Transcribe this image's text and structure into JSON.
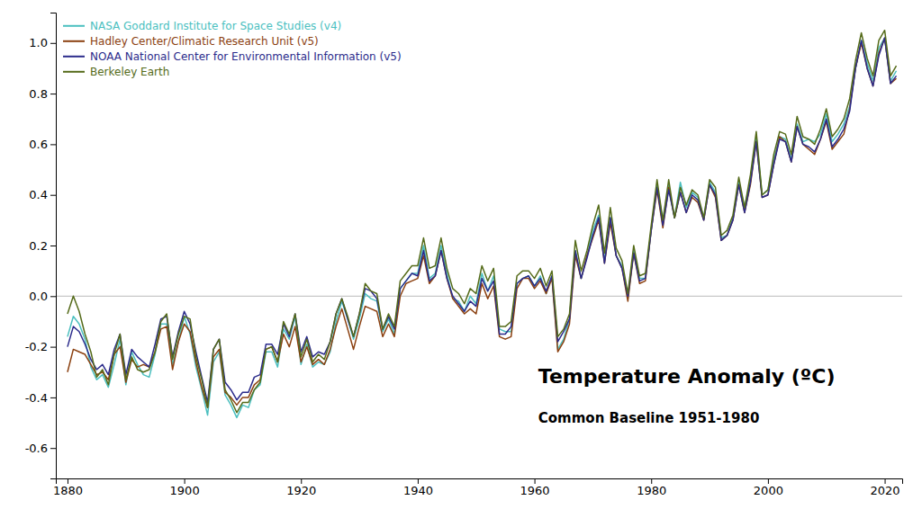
{
  "chart_data": {
    "type": "line",
    "title": "Temperature Anomaly (ºC)",
    "subtitle": "Common Baseline 1951-1980",
    "x": [
      1880,
      1881,
      1882,
      1883,
      1884,
      1885,
      1886,
      1887,
      1888,
      1889,
      1890,
      1891,
      1892,
      1893,
      1894,
      1895,
      1896,
      1897,
      1898,
      1899,
      1900,
      1901,
      1902,
      1903,
      1904,
      1905,
      1906,
      1907,
      1908,
      1909,
      1910,
      1911,
      1912,
      1913,
      1914,
      1915,
      1916,
      1917,
      1918,
      1919,
      1920,
      1921,
      1922,
      1923,
      1924,
      1925,
      1926,
      1927,
      1928,
      1929,
      1930,
      1931,
      1932,
      1933,
      1934,
      1935,
      1936,
      1937,
      1938,
      1939,
      1940,
      1941,
      1942,
      1943,
      1944,
      1945,
      1946,
      1947,
      1948,
      1949,
      1950,
      1951,
      1952,
      1953,
      1954,
      1955,
      1956,
      1957,
      1958,
      1959,
      1960,
      1961,
      1962,
      1963,
      1964,
      1965,
      1966,
      1967,
      1968,
      1969,
      1970,
      1971,
      1972,
      1973,
      1974,
      1975,
      1976,
      1977,
      1978,
      1979,
      1980,
      1981,
      1982,
      1983,
      1984,
      1985,
      1986,
      1987,
      1988,
      1989,
      1990,
      1991,
      1992,
      1993,
      1994,
      1995,
      1996,
      1997,
      1998,
      1999,
      2000,
      2001,
      2002,
      2003,
      2004,
      2005,
      2006,
      2007,
      2008,
      2009,
      2010,
      2011,
      2012,
      2013,
      2014,
      2015,
      2016,
      2017,
      2018,
      2019,
      2020,
      2021,
      2022
    ],
    "series": [
      {
        "name": "NASA Goddard Institute for Space Studies (v4)",
        "color": "#4bbfbf",
        "values": [
          -0.16,
          -0.08,
          -0.11,
          -0.17,
          -0.28,
          -0.33,
          -0.31,
          -0.36,
          -0.27,
          -0.17,
          -0.35,
          -0.22,
          -0.27,
          -0.31,
          -0.32,
          -0.23,
          -0.11,
          -0.11,
          -0.27,
          -0.18,
          -0.08,
          -0.15,
          -0.28,
          -0.37,
          -0.47,
          -0.26,
          -0.22,
          -0.39,
          -0.43,
          -0.48,
          -0.43,
          -0.44,
          -0.37,
          -0.35,
          -0.22,
          -0.22,
          -0.28,
          -0.13,
          -0.17,
          -0.08,
          -0.27,
          -0.19,
          -0.28,
          -0.26,
          -0.27,
          -0.22,
          -0.1,
          -0.02,
          -0.09,
          -0.17,
          -0.09,
          0.01,
          -0.01,
          -0.02,
          -0.14,
          -0.09,
          -0.15,
          0.03,
          0.06,
          0.09,
          0.09,
          0.2,
          0.07,
          0.09,
          0.2,
          0.09,
          -0.01,
          -0.02,
          -0.06,
          -0.0,
          -0.03,
          0.09,
          0.02,
          0.08,
          -0.13,
          -0.14,
          -0.14,
          0.05,
          0.07,
          0.08,
          0.04,
          0.08,
          0.01,
          0.08,
          -0.21,
          -0.17,
          -0.09,
          0.18,
          0.07,
          0.16,
          0.26,
          0.32,
          0.14,
          0.31,
          0.16,
          0.12,
          -0.01,
          0.18,
          0.07,
          0.07,
          0.26,
          0.44,
          0.3,
          0.44,
          0.31,
          0.45,
          0.35,
          0.41,
          0.39,
          0.31,
          0.45,
          0.41,
          0.23,
          0.24,
          0.31,
          0.45,
          0.35,
          0.46,
          0.63,
          0.4,
          0.42,
          0.54,
          0.63,
          0.62,
          0.54,
          0.68,
          0.61,
          0.62,
          0.61,
          0.64,
          0.72,
          0.61,
          0.64,
          0.68,
          0.75,
          0.9,
          1.01,
          0.92,
          0.85,
          0.98,
          1.02,
          0.85,
          0.89
        ]
      },
      {
        "name": "Hadley Center/Climatic Research Unit (v5)",
        "color": "#8B4010",
        "values": [
          -0.3,
          -0.21,
          -0.22,
          -0.23,
          -0.27,
          -0.31,
          -0.3,
          -0.33,
          -0.23,
          -0.2,
          -0.34,
          -0.25,
          -0.28,
          -0.27,
          -0.28,
          -0.22,
          -0.13,
          -0.12,
          -0.29,
          -0.18,
          -0.11,
          -0.14,
          -0.26,
          -0.36,
          -0.44,
          -0.24,
          -0.21,
          -0.38,
          -0.4,
          -0.43,
          -0.4,
          -0.4,
          -0.35,
          -0.33,
          -0.21,
          -0.2,
          -0.26,
          -0.15,
          -0.2,
          -0.12,
          -0.26,
          -0.2,
          -0.27,
          -0.25,
          -0.27,
          -0.21,
          -0.12,
          -0.05,
          -0.13,
          -0.21,
          -0.12,
          -0.04,
          -0.05,
          -0.06,
          -0.16,
          -0.11,
          -0.16,
          0.0,
          0.05,
          0.06,
          0.07,
          0.16,
          0.05,
          0.08,
          0.18,
          0.07,
          -0.01,
          -0.04,
          -0.07,
          -0.05,
          -0.07,
          0.05,
          -0.01,
          0.04,
          -0.16,
          -0.17,
          -0.16,
          0.03,
          0.07,
          0.07,
          0.03,
          0.06,
          0.01,
          0.07,
          -0.22,
          -0.18,
          -0.11,
          0.16,
          0.07,
          0.16,
          0.23,
          0.3,
          0.13,
          0.29,
          0.16,
          0.11,
          -0.02,
          0.17,
          0.05,
          0.06,
          0.26,
          0.42,
          0.27,
          0.43,
          0.31,
          0.41,
          0.33,
          0.39,
          0.37,
          0.3,
          0.44,
          0.39,
          0.22,
          0.24,
          0.3,
          0.44,
          0.33,
          0.44,
          0.61,
          0.39,
          0.4,
          0.52,
          0.63,
          0.61,
          0.53,
          0.67,
          0.6,
          0.58,
          0.56,
          0.62,
          0.69,
          0.58,
          0.61,
          0.64,
          0.74,
          0.9,
          1.0,
          0.9,
          0.83,
          0.96,
          1.02,
          0.84,
          0.86
        ]
      },
      {
        "name": "NOAA National Center for Environmental Information (v5)",
        "color": "#2b2b8b",
        "values": [
          -0.2,
          -0.12,
          -0.14,
          -0.19,
          -0.25,
          -0.29,
          -0.27,
          -0.31,
          -0.21,
          -0.15,
          -0.31,
          -0.21,
          -0.24,
          -0.26,
          -0.28,
          -0.19,
          -0.09,
          -0.08,
          -0.24,
          -0.14,
          -0.06,
          -0.11,
          -0.22,
          -0.32,
          -0.42,
          -0.21,
          -0.17,
          -0.34,
          -0.37,
          -0.41,
          -0.38,
          -0.38,
          -0.32,
          -0.31,
          -0.19,
          -0.19,
          -0.23,
          -0.11,
          -0.16,
          -0.07,
          -0.22,
          -0.16,
          -0.24,
          -0.22,
          -0.23,
          -0.18,
          -0.07,
          -0.01,
          -0.09,
          -0.16,
          -0.07,
          0.03,
          0.02,
          -0.01,
          -0.13,
          -0.08,
          -0.13,
          0.03,
          0.06,
          0.09,
          0.08,
          0.18,
          0.06,
          0.08,
          0.18,
          0.07,
          0.0,
          -0.03,
          -0.06,
          -0.02,
          -0.04,
          0.07,
          0.02,
          0.06,
          -0.15,
          -0.15,
          -0.12,
          0.05,
          0.07,
          0.08,
          0.04,
          0.07,
          0.02,
          0.08,
          -0.18,
          -0.14,
          -0.09,
          0.18,
          0.07,
          0.15,
          0.24,
          0.31,
          0.13,
          0.31,
          0.16,
          0.11,
          0.0,
          0.17,
          0.06,
          0.07,
          0.26,
          0.43,
          0.28,
          0.42,
          0.31,
          0.41,
          0.33,
          0.4,
          0.38,
          0.3,
          0.44,
          0.4,
          0.22,
          0.24,
          0.3,
          0.44,
          0.33,
          0.45,
          0.61,
          0.39,
          0.4,
          0.52,
          0.62,
          0.61,
          0.53,
          0.67,
          0.6,
          0.59,
          0.57,
          0.62,
          0.7,
          0.59,
          0.62,
          0.66,
          0.73,
          0.9,
          1.01,
          0.9,
          0.83,
          0.95,
          1.02,
          0.84,
          0.87
        ]
      },
      {
        "name": "Berkeley Earth",
        "color": "#556b1a",
        "values": [
          -0.07,
          -0.0,
          -0.06,
          -0.15,
          -0.22,
          -0.32,
          -0.29,
          -0.35,
          -0.23,
          -0.15,
          -0.33,
          -0.24,
          -0.29,
          -0.3,
          -0.29,
          -0.22,
          -0.1,
          -0.07,
          -0.25,
          -0.15,
          -0.08,
          -0.09,
          -0.24,
          -0.33,
          -0.44,
          -0.21,
          -0.17,
          -0.37,
          -0.41,
          -0.46,
          -0.42,
          -0.42,
          -0.37,
          -0.34,
          -0.21,
          -0.2,
          -0.26,
          -0.1,
          -0.15,
          -0.07,
          -0.24,
          -0.17,
          -0.26,
          -0.23,
          -0.25,
          -0.18,
          -0.07,
          -0.01,
          -0.08,
          -0.16,
          -0.07,
          0.05,
          0.02,
          0.01,
          -0.13,
          -0.07,
          -0.12,
          0.06,
          0.09,
          0.12,
          0.12,
          0.23,
          0.11,
          0.12,
          0.23,
          0.11,
          0.03,
          0.01,
          -0.03,
          0.03,
          0.01,
          0.12,
          0.06,
          0.11,
          -0.12,
          -0.12,
          -0.1,
          0.08,
          0.1,
          0.1,
          0.07,
          0.11,
          0.04,
          0.1,
          -0.16,
          -0.13,
          -0.07,
          0.22,
          0.1,
          0.18,
          0.28,
          0.36,
          0.17,
          0.35,
          0.19,
          0.14,
          0.01,
          0.2,
          0.08,
          0.09,
          0.28,
          0.46,
          0.3,
          0.46,
          0.31,
          0.43,
          0.36,
          0.42,
          0.4,
          0.31,
          0.46,
          0.43,
          0.24,
          0.26,
          0.32,
          0.47,
          0.35,
          0.48,
          0.65,
          0.4,
          0.42,
          0.56,
          0.65,
          0.64,
          0.56,
          0.71,
          0.63,
          0.62,
          0.6,
          0.66,
          0.74,
          0.63,
          0.66,
          0.7,
          0.78,
          0.93,
          1.04,
          0.94,
          0.87,
          1.01,
          1.05,
          0.87,
          0.91
        ]
      }
    ],
    "xlim": [
      1878,
      2023
    ],
    "ylim": [
      -0.72,
      1.12
    ],
    "xticks": [
      1880,
      1900,
      1920,
      1940,
      1960,
      1980,
      2000,
      2020
    ],
    "yticks": [
      -0.6,
      -0.4,
      -0.2,
      {
        "value": 0,
        "label": "0.0"
      },
      0.2,
      0.4,
      0.6,
      0.8,
      {
        "value": 1,
        "label": "1.0"
      }
    ],
    "legend": "upper left"
  }
}
